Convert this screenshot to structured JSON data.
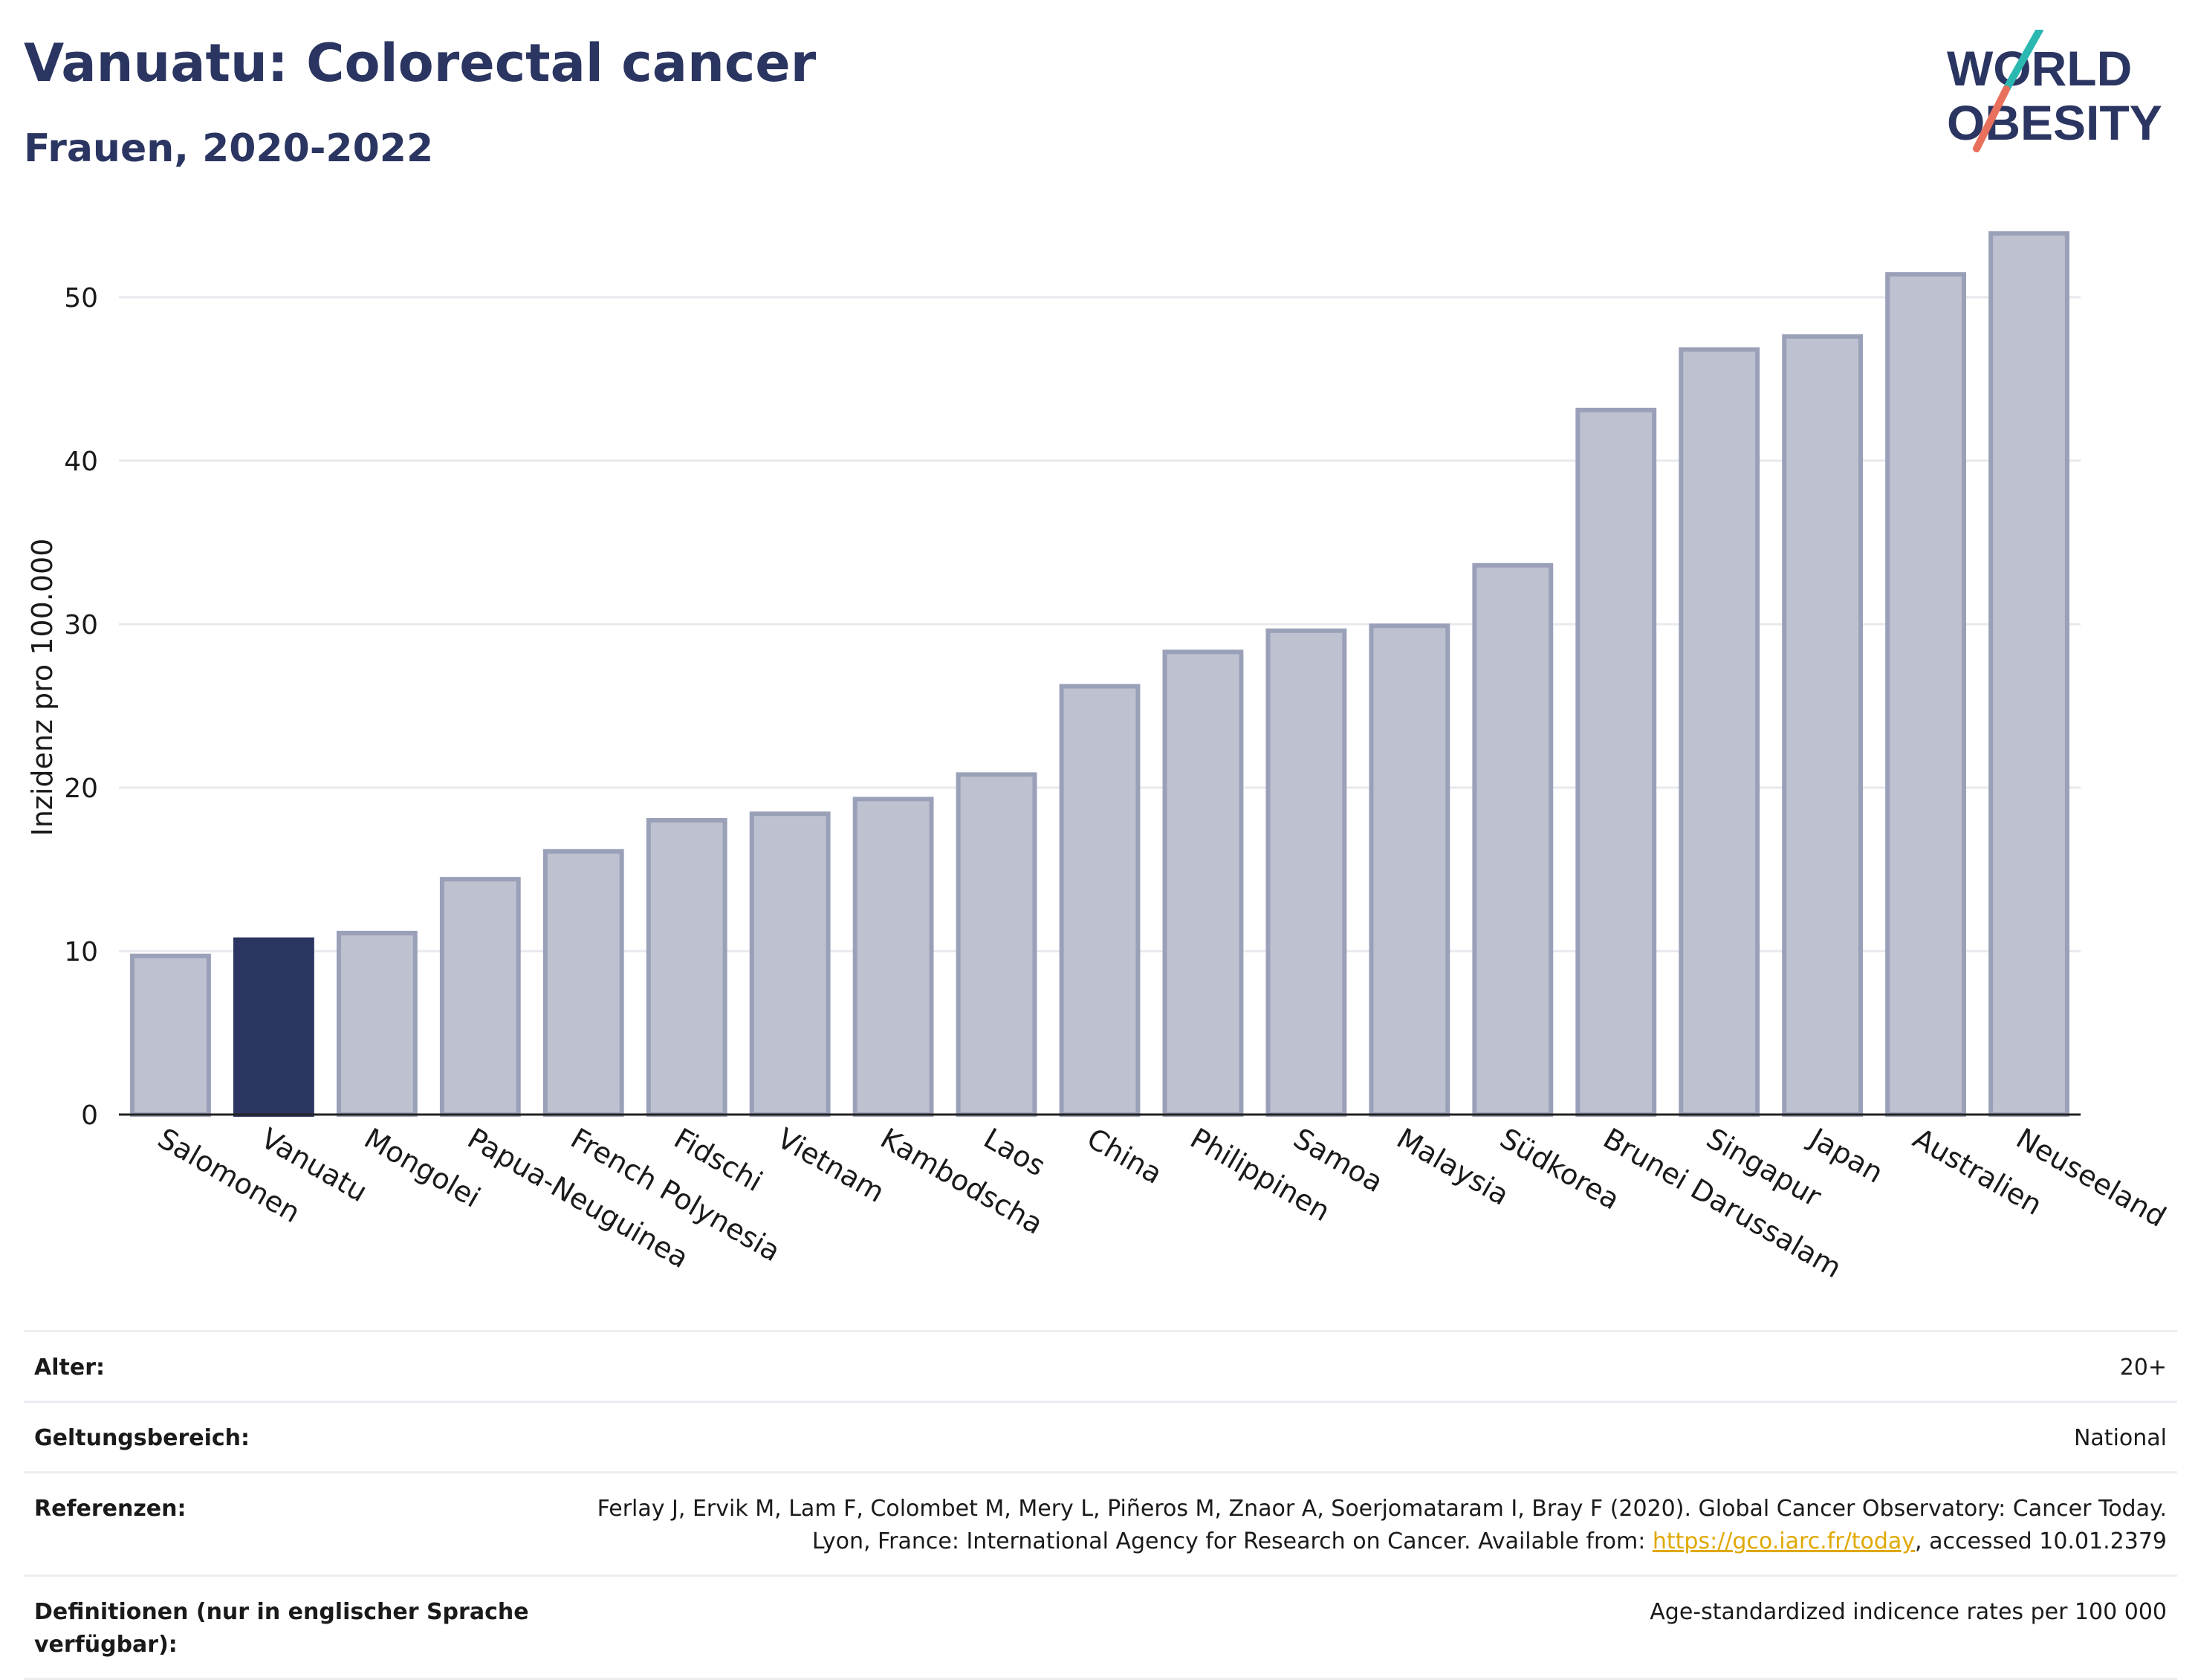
{
  "header": {
    "title": "Vanuatu: Colorectal cancer",
    "subtitle": "Frauen, 2020-2022"
  },
  "logo": {
    "line1": "WORLD",
    "line2": "OBESITY",
    "accent_teal": "#2bb8b1",
    "accent_red": "#e8705c",
    "text_color": "#2b3561"
  },
  "chart_data": {
    "type": "bar",
    "title": "Vanuatu: Colorectal cancer",
    "subtitle": "Frauen, 2020-2022",
    "ylabel": "Inzidenz pro 100.000",
    "xlabel": "",
    "ylim": [
      0,
      55
    ],
    "yticks": [
      0,
      10,
      20,
      30,
      40,
      50
    ],
    "grid": true,
    "highlight": "Vanuatu",
    "colors": {
      "highlight": "#2b3561",
      "default": "#bec1cf",
      "default_stroke": "#9aa0b8"
    },
    "categories": [
      "Salomonen",
      "Vanuatu",
      "Mongolei",
      "Papua-Neuguinea",
      "French Polynesia",
      "Fidschi",
      "Vietnam",
      "Kambodscha",
      "Laos",
      "China",
      "Philippinen",
      "Samoa",
      "Malaysia",
      "Südkorea",
      "Brunei Darussalam",
      "Singapur",
      "Japan",
      "Australien",
      "Neuseeland"
    ],
    "values": [
      9.7,
      10.7,
      11.1,
      14.4,
      16.1,
      18.0,
      18.4,
      19.3,
      20.8,
      26.2,
      28.3,
      29.6,
      29.9,
      33.6,
      43.1,
      46.8,
      47.6,
      51.4,
      53.9
    ]
  },
  "meta": {
    "age_label": "Alter:",
    "age_value": "20+",
    "scope_label": "Geltungsbereich:",
    "scope_value": "National",
    "ref_label": "Referenzen:",
    "ref_text_1": "Ferlay J, Ervik M, Lam F, Colombet M, Mery L, Piñeros M, Znaor A, Soerjomataram I, Bray F (2020). Global Cancer Observatory: Cancer Today. Lyon, France: International Agency for Research on Cancer. Available from: ",
    "ref_link": "https://gco.iarc.fr/today",
    "ref_text_2": ", accessed 10.01.2379",
    "def_label": "Definitionen (nur in englischer Sprache verfügbar):",
    "def_value": "Age-standardized indicence rates per 100 000"
  }
}
